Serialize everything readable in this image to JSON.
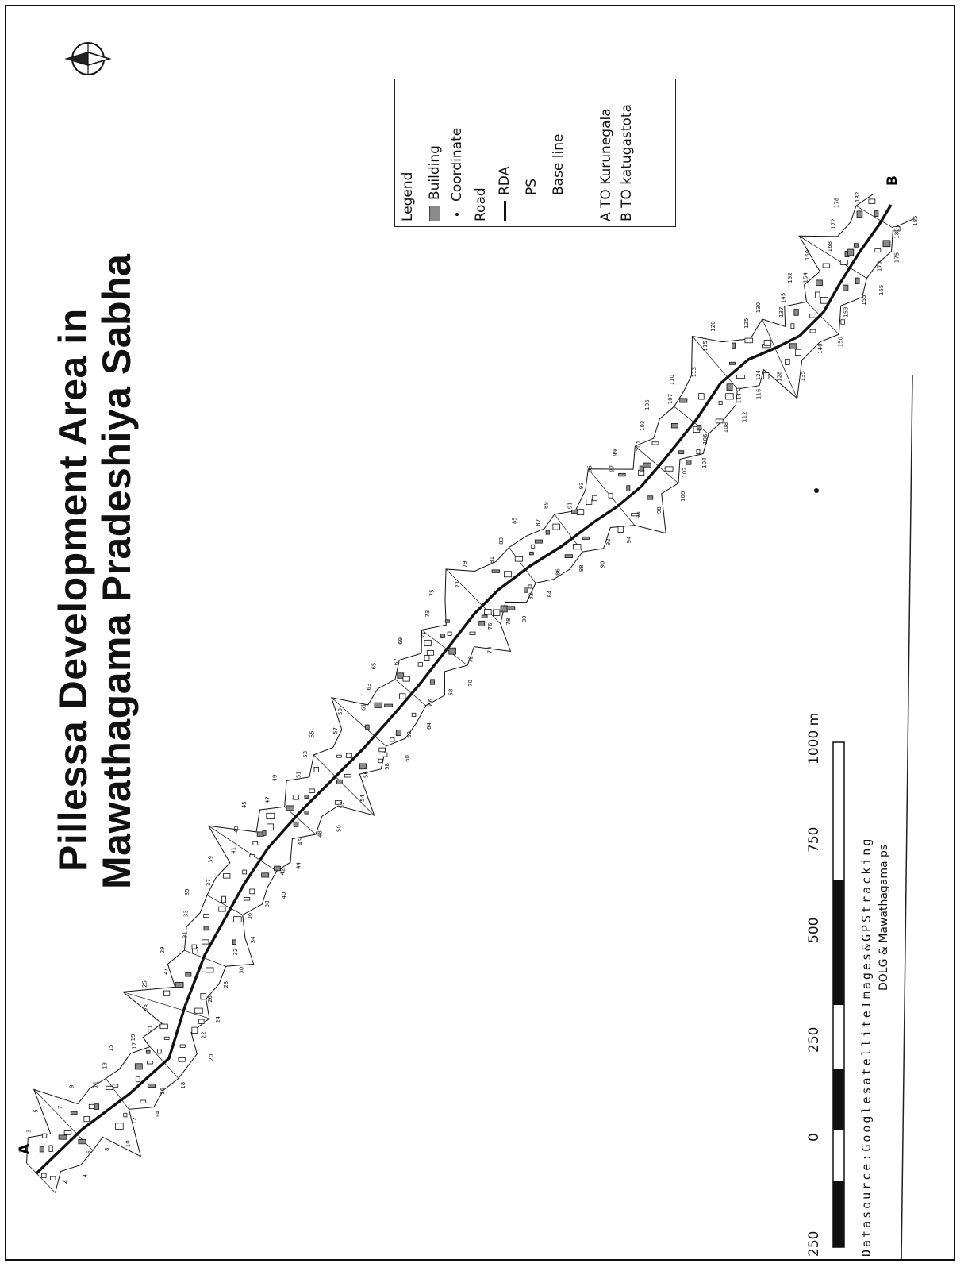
{
  "map": {
    "title_line1": "Pillessa  Development Area in",
    "title_line2": "Mawathagama Pradeshiya Sabha",
    "endpoint_a": "A",
    "endpoint_b": "B",
    "parcel_numbers": [
      "1",
      "2",
      "3",
      "4",
      "5",
      "6",
      "7",
      "8",
      "9",
      "10",
      "11",
      "12",
      "13",
      "14",
      "15",
      "16",
      "17",
      "18",
      "19",
      "20",
      "21",
      "22",
      "23",
      "24",
      "25",
      "26",
      "27",
      "28",
      "29",
      "30",
      "31",
      "32",
      "33",
      "34",
      "35",
      "36",
      "37",
      "38",
      "39",
      "40",
      "41",
      "42",
      "43",
      "44",
      "45",
      "46",
      "47",
      "48",
      "49",
      "50",
      "51",
      "52",
      "53",
      "54",
      "55",
      "56",
      "57",
      "58",
      "59",
      "60",
      "61",
      "62",
      "63",
      "64",
      "65",
      "66",
      "67",
      "68",
      "69",
      "70",
      "71",
      "72",
      "73",
      "74",
      "75",
      "76",
      "77",
      "78",
      "79",
      "80",
      "81",
      "82",
      "83",
      "84",
      "85",
      "86",
      "87",
      "88",
      "89",
      "90",
      "91",
      "92",
      "93",
      "94",
      "95",
      "96",
      "97",
      "98",
      "99",
      "100",
      "101",
      "102",
      "103",
      "104",
      "105",
      "106",
      "107",
      "108",
      "110",
      "112",
      "113",
      "114",
      "115",
      "116",
      "120",
      "124",
      "125",
      "128",
      "130",
      "135",
      "137",
      "140",
      "145",
      "150",
      "152",
      "153",
      "154",
      "155",
      "160",
      "165",
      "168",
      "170",
      "172",
      "175",
      "178",
      "180",
      "182",
      "185"
    ]
  },
  "legend": {
    "title": "Legend",
    "items": [
      {
        "symbol": "building",
        "label": "Building"
      },
      {
        "symbol": "coordinate",
        "label": "Coordinate"
      }
    ],
    "road_heading": "Road",
    "road_items": [
      {
        "symbol": "rda-line",
        "label": "RDA"
      },
      {
        "symbol": "ps-line",
        "label": "PS"
      },
      {
        "symbol": "base-line",
        "label": "Base line"
      }
    ],
    "destinations": [
      {
        "key": "A",
        "text": "TO Kurunegala"
      },
      {
        "key": "B",
        "text": "TO katugastota"
      }
    ]
  },
  "scale_bar": {
    "labels": [
      "250",
      "0",
      "250",
      "500",
      "750",
      "1000 m"
    ],
    "unit": "m"
  },
  "source": {
    "line1": "Datasource:GooglesatelliteImages&GPStracking",
    "line2": "DOLG & Mawathagama ps"
  },
  "colors": {
    "ink": "#111111",
    "building_fill": "#8a8a8a",
    "paper": "#ffffff"
  },
  "icons": {
    "north_arrow": "compass-north-arrow-icon"
  }
}
